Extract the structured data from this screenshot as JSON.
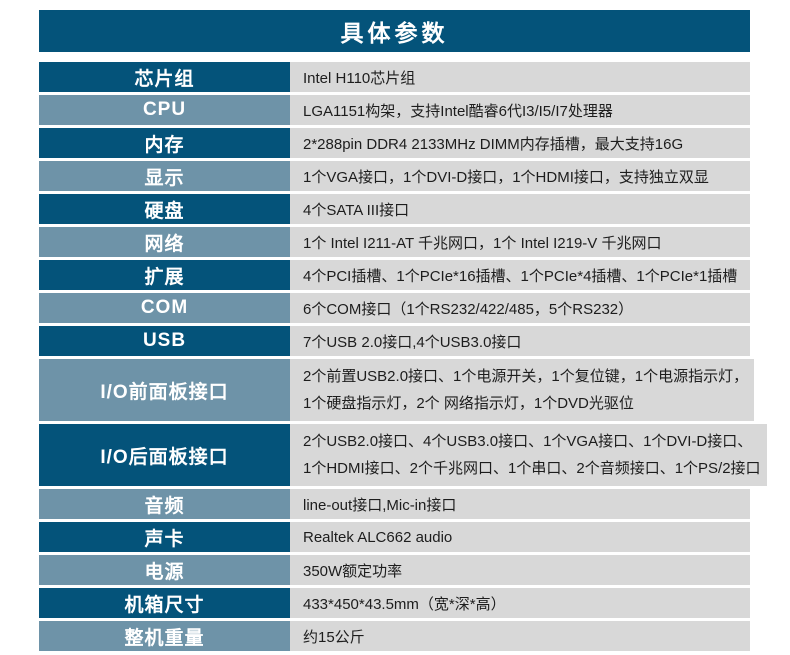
{
  "page": {
    "title": "具体参数"
  },
  "colors": {
    "header_bg": "#04537a",
    "label_dark_bg": "#04537a",
    "label_light_bg": "#6e93a8",
    "value_bg": "#d8d8d8",
    "label_text": "#ffffff",
    "value_text": "#1d1d1d"
  },
  "table": {
    "rows": [
      {
        "label": "芯片组",
        "value": "Intel H110芯片组"
      },
      {
        "label": "CPU",
        "value": "LGA1151构架，支持Intel酷睿6代I3/I5/I7处理器"
      },
      {
        "label": "内存",
        "value": "2*288pin DDR4 2133MHz DIMM内存插槽，最大支持16G"
      },
      {
        "label": "显示",
        "value": "1个VGA接口，1个DVI-D接口，1个HDMI接口，支持独立双显"
      },
      {
        "label": "硬盘",
        "value": "4个SATA III接口"
      },
      {
        "label": "网络",
        "value": "1个 Intel I211-AT 千兆网口，1个 Intel I219-V 千兆网口"
      },
      {
        "label": "扩展",
        "value": "4个PCI插槽、1个PCIe*16插槽、1个PCIe*4插槽、1个PCIe*1插槽"
      },
      {
        "label": "COM",
        "value": "6个COM接口（1个RS232/422/485，5个RS232）"
      },
      {
        "label": "USB",
        "value": "7个USB 2.0接口,4个USB3.0接口"
      },
      {
        "label": "I/O前面板接口",
        "value": "2个前置USB2.0接口、1个电源开关，1个复位键，1个电源指示灯，",
        "value2": "1个硬盘指示灯，2个 网络指示灯，1个DVD光驱位"
      },
      {
        "label": "I/O后面板接口",
        "value": "2个USB2.0接口、4个USB3.0接口、1个VGA接口、1个DVI-D接口、",
        "value2": "1个HDMI接口、2个千兆网口、1个串口、2个音频接口、1个PS/2接口"
      },
      {
        "label": "音频",
        "value": "line-out接口,Mic-in接口"
      },
      {
        "label": "声卡",
        "value": "Realtek ALC662 audio"
      },
      {
        "label": "电源",
        "value": "350W额定功率"
      },
      {
        "label": "机箱尺寸",
        "value": "433*450*43.5mm（宽*深*高）"
      },
      {
        "label": "整机重量",
        "value": "约15公斤"
      }
    ]
  }
}
